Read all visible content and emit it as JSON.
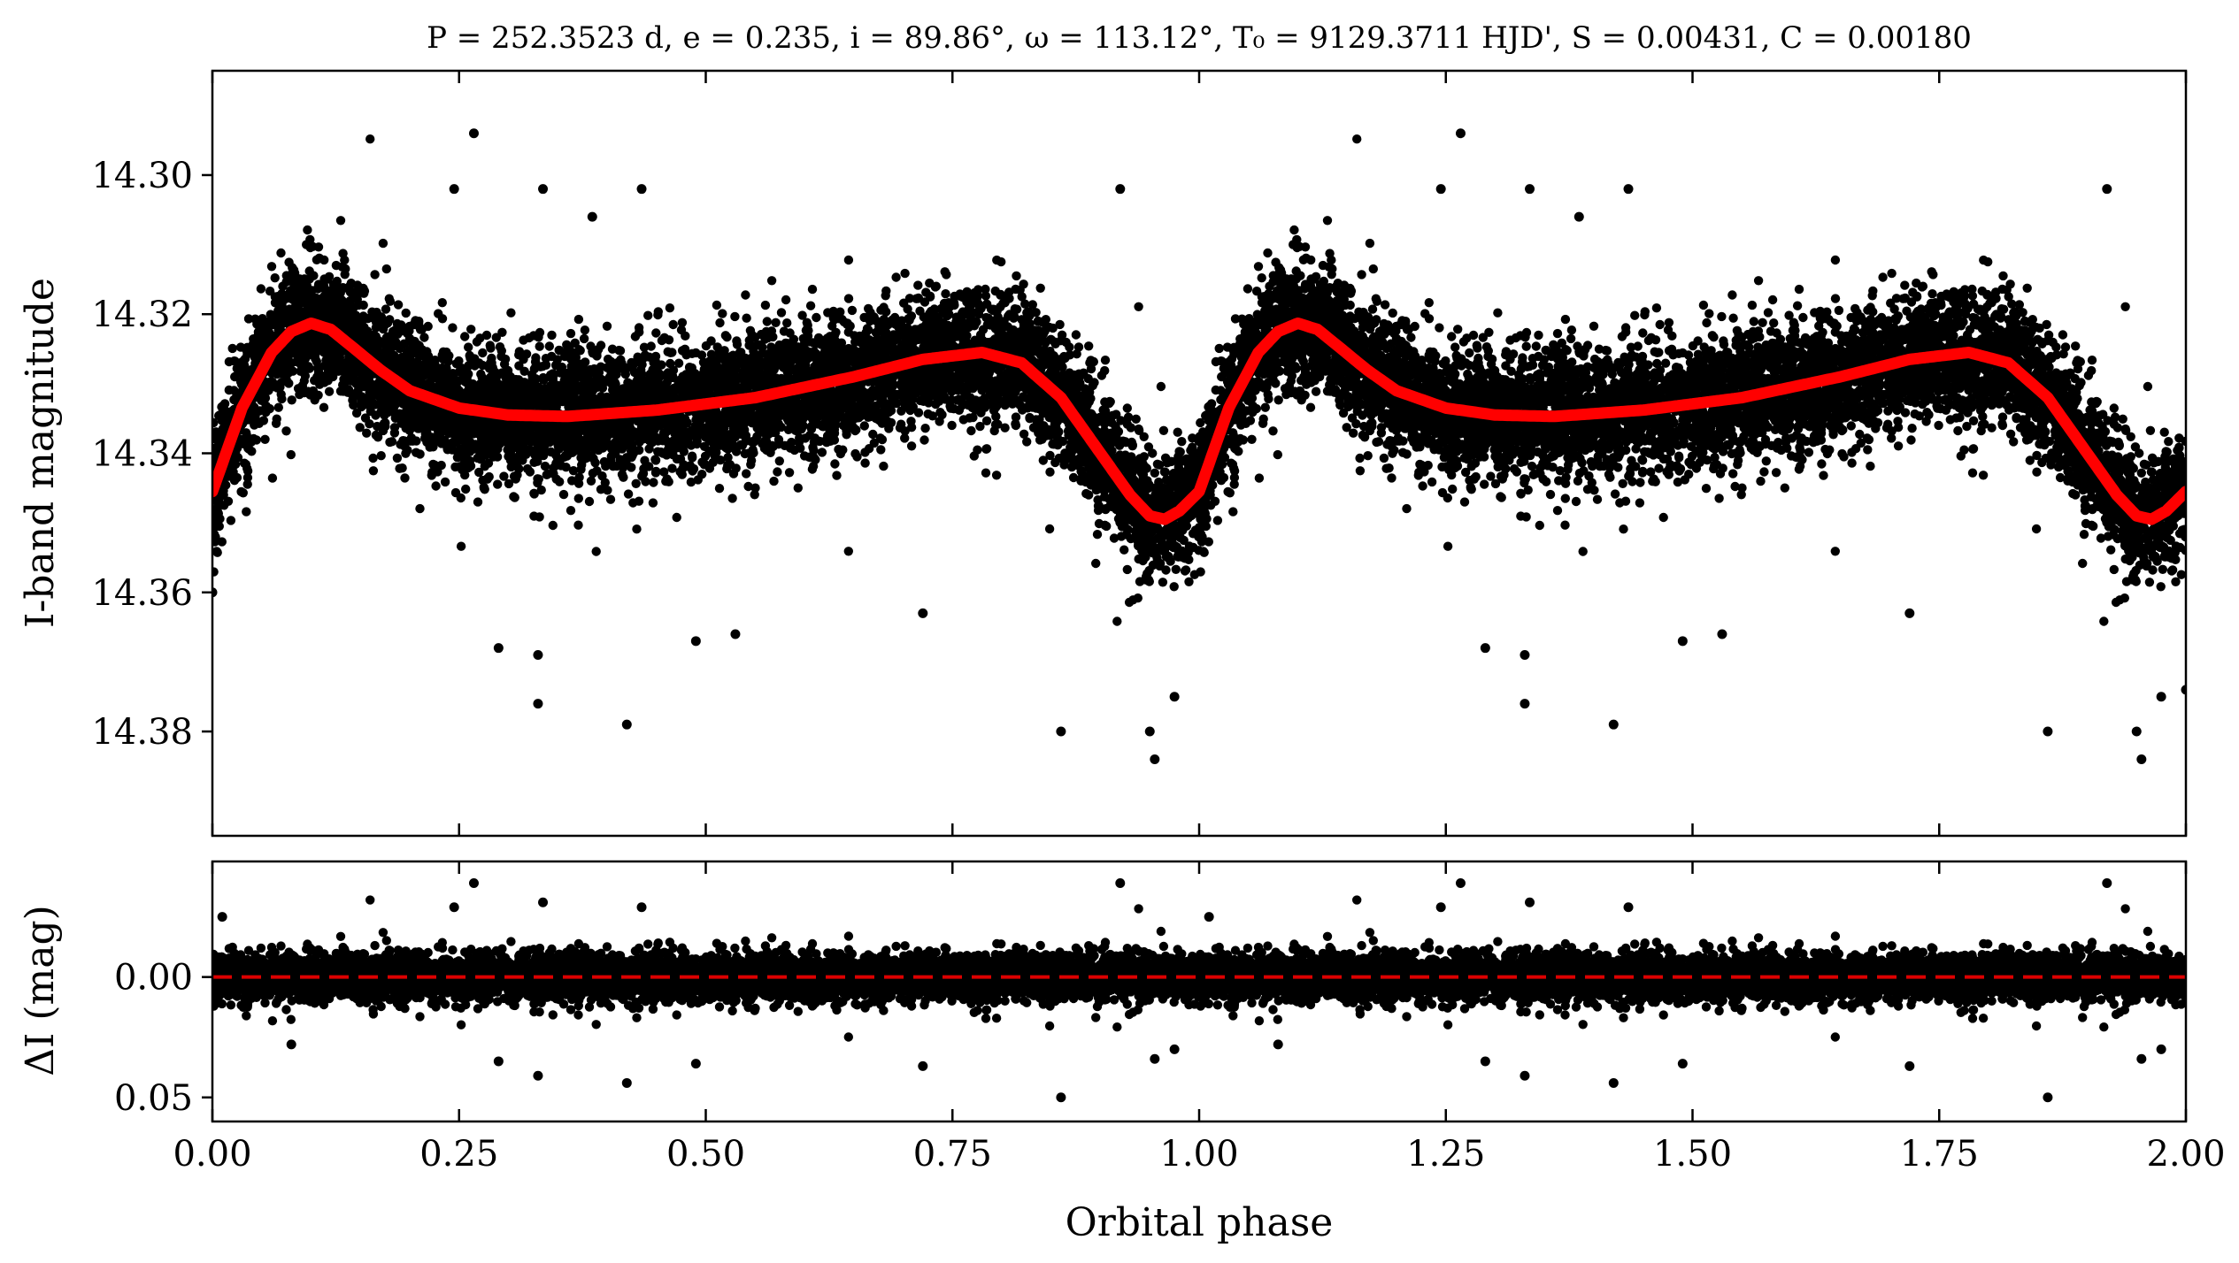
{
  "title": "P = 252.3523 d, e = 0.235, i = 89.86°, ω = 113.12°, T₀ = 9129.3711 HJD', S = 0.00431, C = 0.00180",
  "colors": {
    "points": "#000000",
    "model": "#ff0000",
    "residual_zero": "#dd0000",
    "frame": "#000000"
  },
  "chart_data": [
    {
      "type": "scatter",
      "panel": "top",
      "xlabel": "",
      "ylabel": "I-band magnitude",
      "xlim": [
        0,
        2
      ],
      "ylim": [
        14.395,
        14.285
      ],
      "y_inverted": true,
      "yticks": [
        14.3,
        14.32,
        14.34,
        14.36,
        14.38
      ],
      "ytick_labels": [
        "14.30",
        "14.32",
        "14.34",
        "14.36",
        "14.38"
      ],
      "xticks": [
        0,
        0.25,
        0.5,
        0.75,
        1.0,
        1.25,
        1.5,
        1.75,
        2.0
      ],
      "grid": false,
      "series": [
        {
          "kind": "scatter",
          "description": "dense photometric points around model; approx. scatter sigma 0.005 mag",
          "outliers": [
            {
              "x": 0.265,
              "y": 14.294
            },
            {
              "x": 0.245,
              "y": 14.302
            },
            {
              "x": 0.335,
              "y": 14.302
            },
            {
              "x": 0.435,
              "y": 14.302
            },
            {
              "x": 0.385,
              "y": 14.306
            },
            {
              "x": 0.92,
              "y": 14.302
            },
            {
              "x": 1.265,
              "y": 14.294
            },
            {
              "x": 1.245,
              "y": 14.302
            },
            {
              "x": 1.335,
              "y": 14.302
            },
            {
              "x": 1.435,
              "y": 14.302
            },
            {
              "x": 1.385,
              "y": 14.306
            },
            {
              "x": 1.92,
              "y": 14.302
            },
            {
              "x": 0.33,
              "y": 14.376
            },
            {
              "x": 0.42,
              "y": 14.379
            },
            {
              "x": 0.86,
              "y": 14.38
            },
            {
              "x": 0.955,
              "y": 14.384
            },
            {
              "x": 0.95,
              "y": 14.38
            },
            {
              "x": 0.975,
              "y": 14.375
            },
            {
              "x": 1.33,
              "y": 14.376
            },
            {
              "x": 1.42,
              "y": 14.379
            },
            {
              "x": 1.86,
              "y": 14.38
            },
            {
              "x": 1.955,
              "y": 14.384
            },
            {
              "x": 1.95,
              "y": 14.38
            },
            {
              "x": 1.975,
              "y": 14.375
            },
            {
              "x": 0.29,
              "y": 14.368
            },
            {
              "x": 0.33,
              "y": 14.369
            },
            {
              "x": 0.49,
              "y": 14.367
            },
            {
              "x": 0.53,
              "y": 14.366
            },
            {
              "x": 0.72,
              "y": 14.363
            },
            {
              "x": 1.29,
              "y": 14.368
            },
            {
              "x": 1.33,
              "y": 14.369
            },
            {
              "x": 1.49,
              "y": 14.367
            },
            {
              "x": 1.53,
              "y": 14.366
            },
            {
              "x": 1.72,
              "y": 14.363
            },
            {
              "x": 0.0,
              "y": 14.36
            },
            {
              "x": 2.0,
              "y": 14.374
            }
          ]
        },
        {
          "kind": "line",
          "description": "model light curve (red)",
          "x": [
            0.0,
            0.03,
            0.06,
            0.08,
            0.1,
            0.12,
            0.14,
            0.17,
            0.2,
            0.25,
            0.3,
            0.36,
            0.45,
            0.55,
            0.65,
            0.72,
            0.78,
            0.82,
            0.86,
            0.9,
            0.93,
            0.95,
            0.965,
            0.98,
            1.0,
            1.03,
            1.06,
            1.08,
            1.1,
            1.12,
            1.14,
            1.17,
            1.2,
            1.25,
            1.3,
            1.36,
            1.45,
            1.55,
            1.65,
            1.72,
            1.78,
            1.82,
            1.86,
            1.9,
            1.93,
            1.95,
            1.965,
            1.98,
            2.0
          ],
          "y": [
            14.3455,
            14.3335,
            14.3255,
            14.3225,
            14.3213,
            14.3222,
            14.3245,
            14.328,
            14.331,
            14.3335,
            14.3345,
            14.3347,
            14.3338,
            14.332,
            14.329,
            14.3265,
            14.3255,
            14.327,
            14.332,
            14.34,
            14.346,
            14.349,
            14.3495,
            14.3483,
            14.3455,
            14.3335,
            14.3255,
            14.3225,
            14.3213,
            14.3222,
            14.3245,
            14.328,
            14.331,
            14.3335,
            14.3345,
            14.3347,
            14.3338,
            14.332,
            14.329,
            14.3265,
            14.3255,
            14.327,
            14.332,
            14.34,
            14.346,
            14.349,
            14.3495,
            14.3483,
            14.3455
          ]
        }
      ]
    },
    {
      "type": "scatter",
      "panel": "bottom",
      "xlabel": "Orbital phase",
      "ylabel": "ΔI (mag)",
      "xlim": [
        0,
        2
      ],
      "ylim": [
        0.06,
        -0.048
      ],
      "y_inverted": true,
      "yticks": [
        0.0,
        0.05
      ],
      "ytick_labels": [
        "0.00",
        "0.05"
      ],
      "xticks": [
        0,
        0.25,
        0.5,
        0.75,
        1.0,
        1.25,
        1.5,
        1.75,
        2.0
      ],
      "xtick_labels": [
        "0.00",
        "0.25",
        "0.50",
        "0.75",
        "1.00",
        "1.25",
        "1.50",
        "1.75",
        "2.00"
      ],
      "grid": false,
      "reference_line": {
        "y": 0.0,
        "style": "dashed"
      },
      "series": [
        {
          "kind": "scatter",
          "description": "residuals, approx. scatter sigma 0.005 mag",
          "outliers": [
            {
              "x": 0.265,
              "y": -0.039
            },
            {
              "x": 0.335,
              "y": -0.031
            },
            {
              "x": 0.92,
              "y": -0.039
            },
            {
              "x": 1.265,
              "y": -0.039
            },
            {
              "x": 1.335,
              "y": -0.031
            },
            {
              "x": 1.92,
              "y": -0.039
            },
            {
              "x": 0.245,
              "y": -0.029
            },
            {
              "x": 1.245,
              "y": -0.029
            },
            {
              "x": 0.435,
              "y": -0.029
            },
            {
              "x": 1.435,
              "y": -0.029
            },
            {
              "x": 0.01,
              "y": -0.025
            },
            {
              "x": 1.01,
              "y": -0.025
            },
            {
              "x": 0.86,
              "y": 0.05
            },
            {
              "x": 1.86,
              "y": 0.05
            },
            {
              "x": 0.42,
              "y": 0.044
            },
            {
              "x": 1.42,
              "y": 0.044
            },
            {
              "x": 0.33,
              "y": 0.041
            },
            {
              "x": 1.33,
              "y": 0.041
            },
            {
              "x": 0.29,
              "y": 0.035
            },
            {
              "x": 1.29,
              "y": 0.035
            },
            {
              "x": 0.72,
              "y": 0.037
            },
            {
              "x": 1.72,
              "y": 0.037
            },
            {
              "x": 0.49,
              "y": 0.036
            },
            {
              "x": 1.49,
              "y": 0.036
            },
            {
              "x": 0.955,
              "y": 0.034
            },
            {
              "x": 1.955,
              "y": 0.034
            },
            {
              "x": 0.975,
              "y": 0.03
            },
            {
              "x": 1.975,
              "y": 0.03
            },
            {
              "x": 0.08,
              "y": 0.028
            },
            {
              "x": 1.08,
              "y": 0.028
            }
          ]
        }
      ]
    }
  ]
}
